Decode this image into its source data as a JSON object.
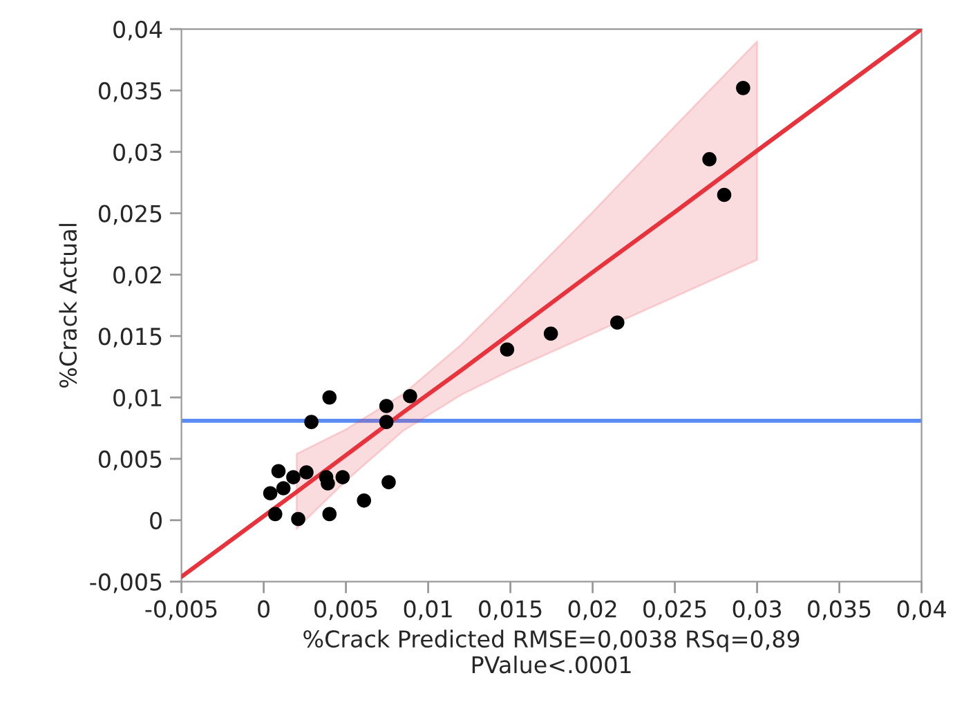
{
  "chart_data": {
    "type": "scatter",
    "xlabel": "%Crack Predicted RMSE=0,0038 RSq=0,89\nPValue<.0001",
    "ylabel": "%Crack Actual",
    "xlim": [
      -0.005,
      0.04
    ],
    "ylim": [
      -0.005,
      0.04
    ],
    "xticks": [
      {
        "value": -0.005,
        "label": "-0,005"
      },
      0,
      {
        "value": 0.005,
        "label": "0,005"
      },
      {
        "value": 0.01,
        "label": "0,01"
      },
      {
        "value": 0.015,
        "label": "0,015"
      },
      {
        "value": 0.02,
        "label": "0,02"
      },
      {
        "value": 0.025,
        "label": "0,025"
      },
      {
        "value": 0.03,
        "label": "0,03"
      },
      {
        "value": 0.035,
        "label": "0,035"
      },
      {
        "value": 0.04,
        "label": "0,04"
      }
    ],
    "yticks": [
      {
        "value": -0.005,
        "label": "-0,005"
      },
      0,
      {
        "value": 0.005,
        "label": "0,005"
      },
      {
        "value": 0.01,
        "label": "0,01"
      },
      {
        "value": 0.015,
        "label": "0,015"
      },
      {
        "value": 0.02,
        "label": "0,02"
      },
      {
        "value": 0.025,
        "label": "0,025"
      },
      {
        "value": 0.03,
        "label": "0,03"
      },
      {
        "value": 0.035,
        "label": "0,035"
      },
      {
        "value": 0.04,
        "label": "0,04"
      }
    ],
    "grid": false,
    "legend": false,
    "ref_lines": [
      {
        "axis": "y",
        "value": 0.0081,
        "color": "#5b8cf5"
      }
    ],
    "series": [
      {
        "type": "line",
        "color": "#e8323c",
        "marker": "none",
        "x": [
          -0.005,
          0.002,
          0.005,
          0.0085,
          0.012,
          0.015,
          0.02,
          0.025,
          0.03,
          0.04
        ],
        "values": [
          -0.0046,
          0.0023,
          0.0053,
          0.0088,
          0.0122,
          0.0152,
          0.0202,
          0.0251,
          0.0301,
          0.04
        ],
        "lower": [
          null,
          -0.0007,
          0.0032,
          0.0073,
          0.0102,
          0.0122,
          0.0152,
          0.0182,
          0.0212,
          null
        ],
        "upper": [
          null,
          0.0054,
          0.0074,
          0.0103,
          0.0143,
          0.0183,
          0.0251,
          0.0321,
          0.039,
          null
        ]
      },
      {
        "color": "#000000",
        "marker": "circle",
        "x": [
          0.02915,
          0.0271,
          0.028,
          0.0215,
          0.01746,
          0.0148,
          0.0089,
          0.00746,
          0.00746,
          0.004,
          0.0029,
          0.0009,
          0.0018,
          0.0026,
          0.0012,
          0.0004,
          0.0007,
          0.0021,
          0.0038,
          0.0039,
          0.0048,
          0.004,
          0.0061,
          0.0076
        ],
        "values": [
          0.0352,
          0.0294,
          0.0265,
          0.0161,
          0.0152,
          0.0139,
          0.0101,
          0.0093,
          0.008,
          0.01,
          0.008,
          0.004,
          0.0035,
          0.0039,
          0.0026,
          0.0022,
          0.0005,
          0.0001,
          0.0035,
          0.003,
          0.0035,
          0.0005,
          0.0016,
          0.0031
        ]
      }
    ]
  }
}
